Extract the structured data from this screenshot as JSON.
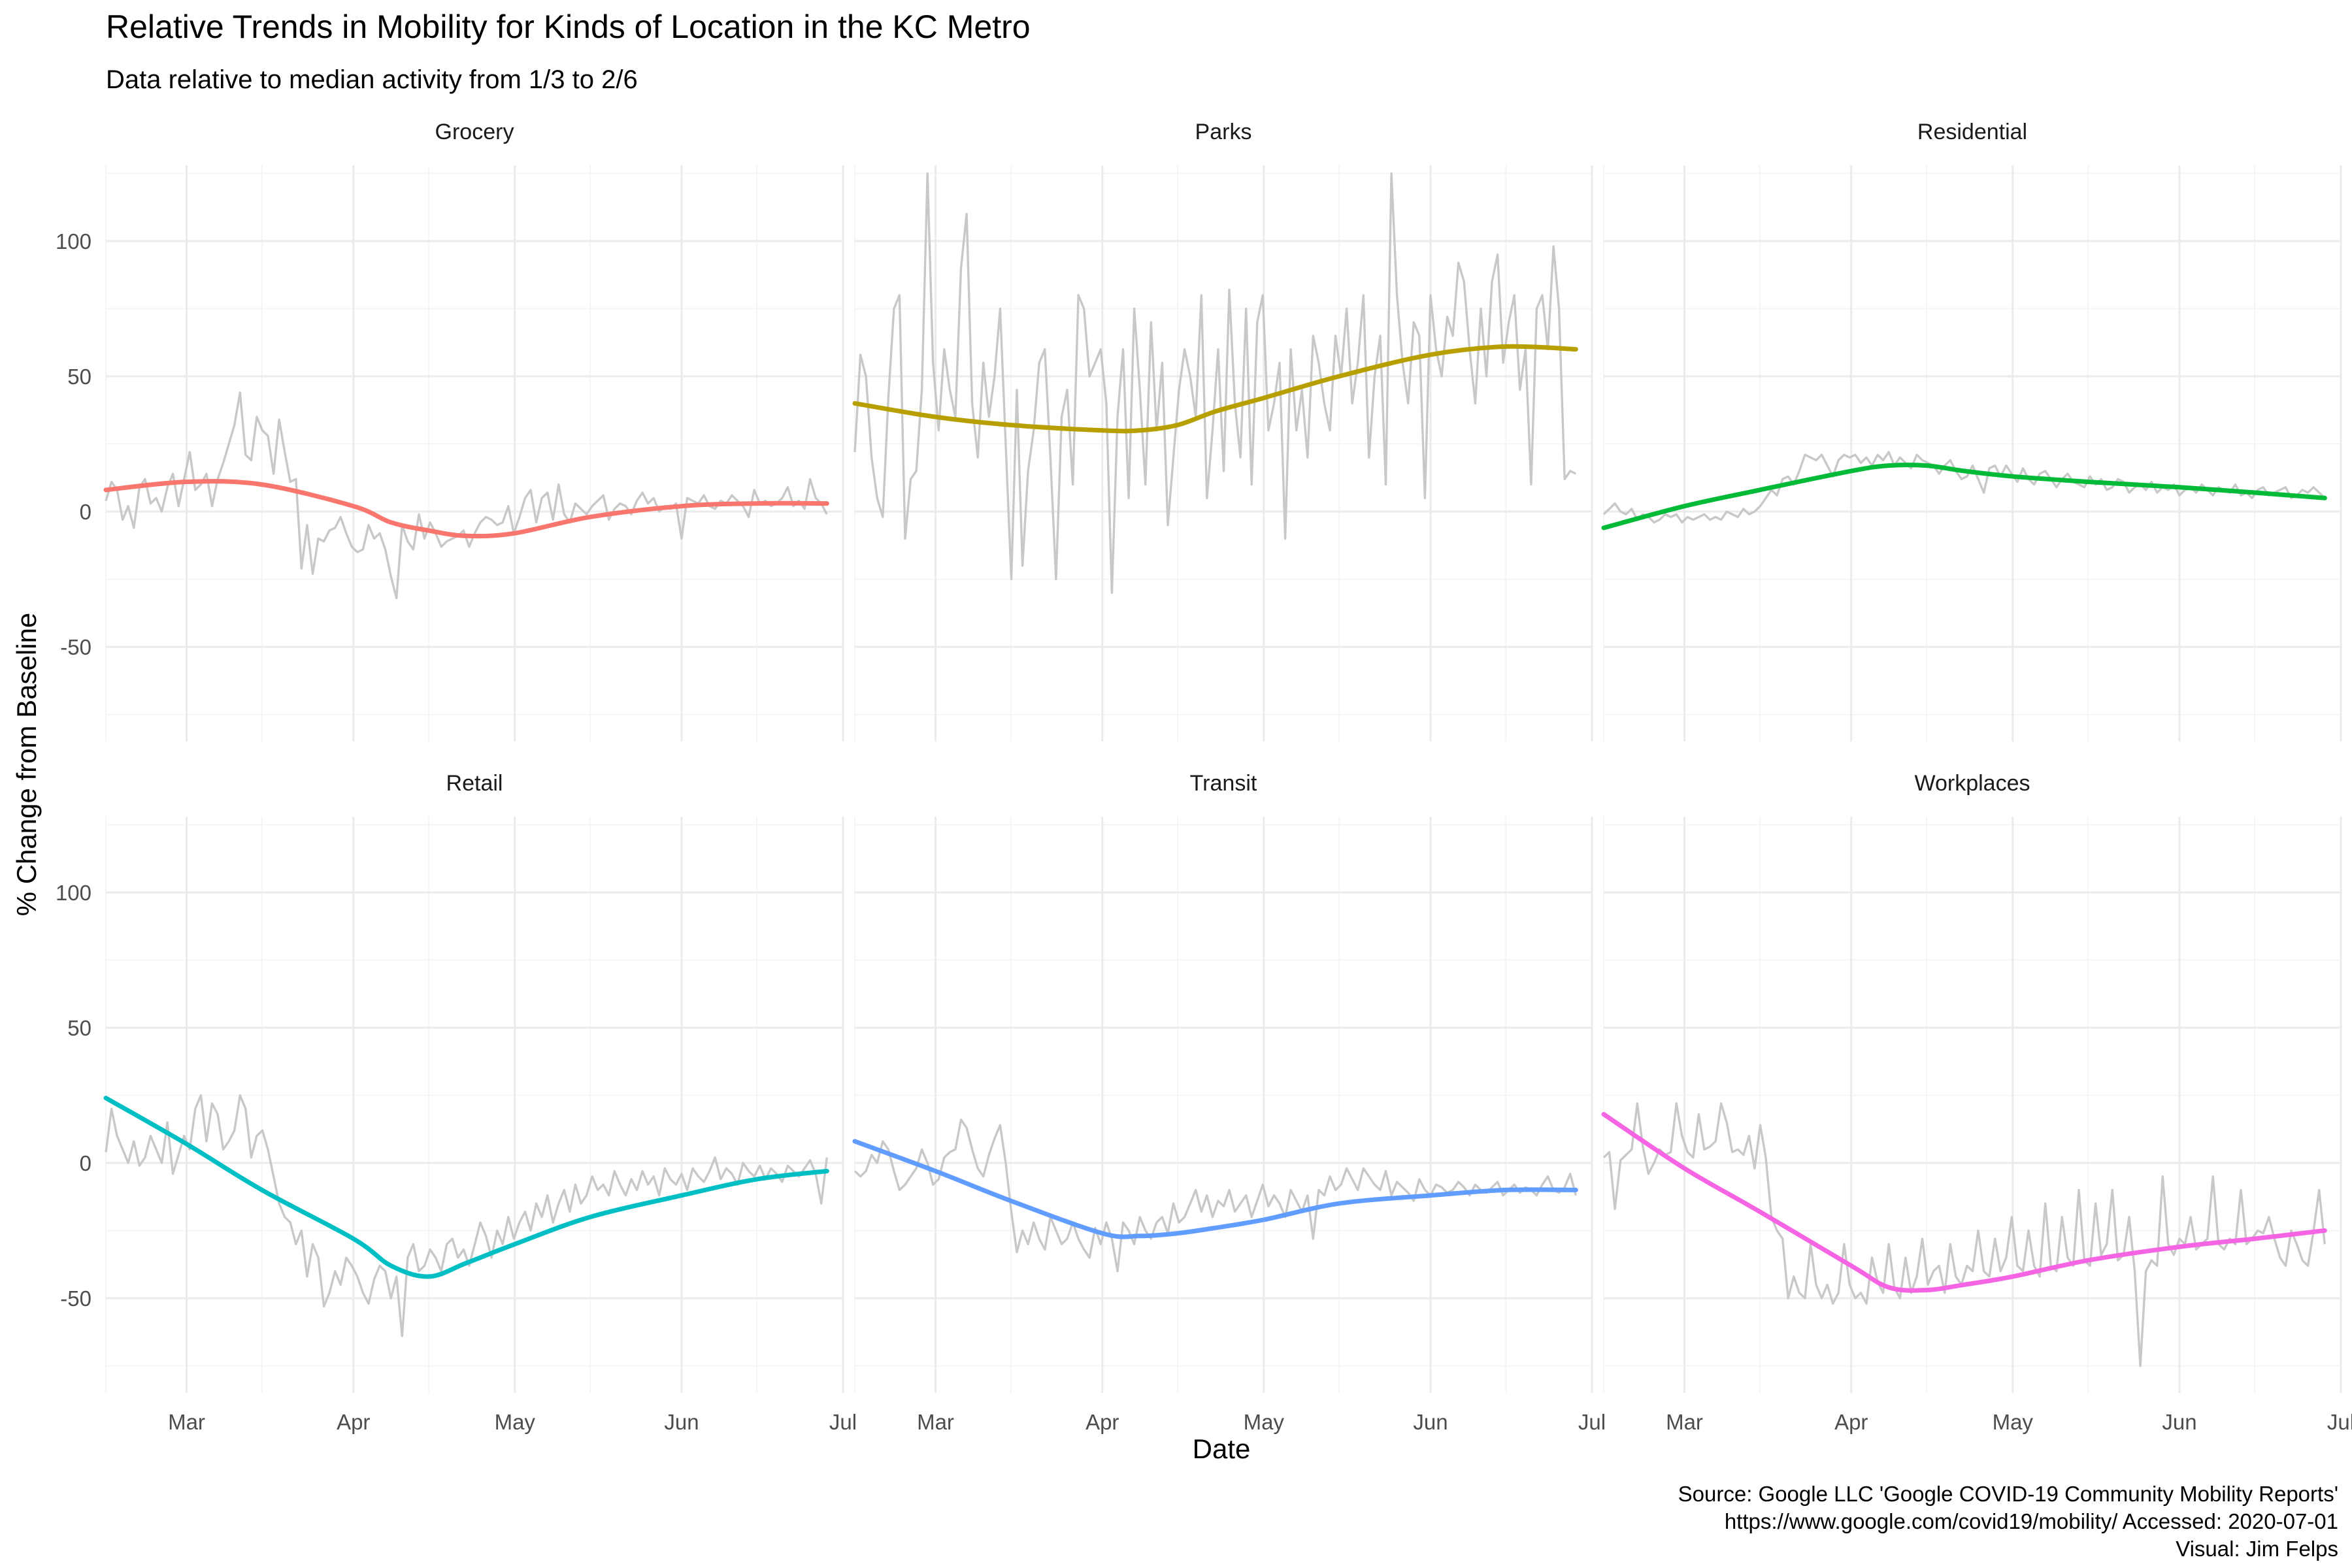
{
  "title": "Relative Trends in Mobility for Kinds of Location in the KC Metro",
  "subtitle": "Data relative to median activity from 1/3 to 2/6",
  "caption": [
    "Source: Google LLC 'Google COVID-19 Community Mobility Reports'",
    "https://www.google.com/covid19/mobility/ Accessed: 2020-07-01",
    "Visual: Jim Felps"
  ],
  "colors": {
    "raw": "#c8c8c8",
    "grid": "#ebebeb"
  },
  "chart_data": {
    "type": "line",
    "layout": "facet-grid 2 rows x 3 columns, shared axes",
    "xlabel": "Date",
    "ylabel": "% Change from Baseline",
    "xlim": [
      "2020-02-15",
      "2020-07-01"
    ],
    "ylim": [
      -85,
      128
    ],
    "x_ticks": [
      {
        "date": "2020-03-01",
        "label": "Mar"
      },
      {
        "date": "2020-04-01",
        "label": "Apr"
      },
      {
        "date": "2020-05-01",
        "label": "May"
      },
      {
        "date": "2020-06-01",
        "label": "Jun"
      },
      {
        "date": "2020-07-01",
        "label": "Jul"
      }
    ],
    "y_ticks": [
      -50,
      0,
      50,
      100
    ],
    "x_minor_dates": [
      "2020-02-15",
      "2020-03-15",
      "2020-04-15",
      "2020-05-15",
      "2020-06-15"
    ],
    "y_minor": [
      -75,
      -25,
      25,
      75,
      125
    ],
    "grid": true,
    "legend": "none",
    "raw_start_date": "2020-02-15",
    "raw_end_date": "2020-06-28",
    "trend_dates": [
      "2020-02-15",
      "2020-03-01",
      "2020-03-15",
      "2020-04-01",
      "2020-04-08",
      "2020-04-15",
      "2020-04-22",
      "2020-05-01",
      "2020-05-15",
      "2020-06-01",
      "2020-06-15",
      "2020-06-28"
    ],
    "series": [
      {
        "name": "Grocery",
        "color": "#F8766D",
        "trend": [
          8,
          11,
          10,
          2,
          -4,
          -7,
          -9,
          -8,
          -2,
          2,
          3,
          3
        ],
        "raw": [
          4,
          11,
          8,
          -3,
          2,
          -6,
          9,
          12,
          3,
          5,
          0,
          9,
          14,
          2,
          12,
          22,
          8,
          10,
          14,
          2,
          12,
          18,
          25,
          32,
          44,
          21,
          19,
          35,
          30,
          28,
          14,
          34,
          22,
          11,
          12,
          -21,
          -5,
          -23,
          -10,
          -11,
          -7,
          -6,
          -2,
          -8,
          -13,
          -15,
          -14,
          -5,
          -10,
          -8,
          -14,
          -24,
          -32,
          -5,
          -11,
          -14,
          -1,
          -10,
          -4,
          -8,
          -13,
          -11,
          -10,
          -9,
          -7,
          -13,
          -8,
          -4,
          -2,
          -3,
          -5,
          -4,
          2,
          -8,
          -2,
          5,
          8,
          -4,
          5,
          7,
          -3,
          10,
          -1,
          -4,
          3,
          1,
          -1,
          2,
          4,
          6,
          -3,
          1,
          3,
          2,
          -1,
          4,
          7,
          3,
          5,
          0,
          2,
          1,
          3,
          -10,
          5,
          4,
          3,
          6,
          2,
          1,
          4,
          3,
          6,
          4,
          2,
          -2,
          8,
          3,
          4,
          2,
          3,
          5,
          9,
          2,
          4,
          1,
          12,
          5,
          3,
          -1
        ]
      },
      {
        "name": "Parks",
        "color": "#B79F00",
        "trend": [
          40,
          35,
          32,
          30,
          30,
          32,
          37,
          42,
          50,
          58,
          61,
          60
        ],
        "raw": [
          22,
          58,
          50,
          20,
          5,
          -2,
          42,
          75,
          80,
          -10,
          12,
          15,
          45,
          125,
          55,
          30,
          60,
          45,
          35,
          90,
          110,
          40,
          20,
          55,
          35,
          50,
          75,
          25,
          -25,
          45,
          -20,
          15,
          30,
          55,
          60,
          20,
          -25,
          35,
          45,
          10,
          80,
          75,
          50,
          55,
          60,
          40,
          -30,
          35,
          60,
          5,
          75,
          45,
          10,
          70,
          30,
          55,
          -5,
          20,
          45,
          60,
          50,
          35,
          80,
          5,
          30,
          60,
          15,
          82,
          40,
          20,
          75,
          10,
          70,
          80,
          30,
          40,
          55,
          -10,
          60,
          30,
          45,
          20,
          65,
          55,
          40,
          30,
          65,
          50,
          75,
          40,
          55,
          80,
          20,
          50,
          65,
          10,
          125,
          80,
          55,
          40,
          70,
          65,
          5,
          80,
          60,
          50,
          72,
          65,
          92,
          85,
          60,
          40,
          75,
          50,
          85,
          95,
          55,
          70,
          80,
          45,
          60,
          10,
          75,
          80,
          60,
          98,
          75,
          12,
          15,
          14
        ]
      },
      {
        "name": "Residential",
        "color": "#00BA38",
        "trend": [
          -6,
          2,
          8,
          15,
          17,
          17,
          15,
          13,
          11,
          9,
          7,
          5
        ],
        "raw": [
          -1,
          1,
          3,
          0,
          -1,
          1,
          -3,
          -1,
          -2,
          -4,
          -3,
          -1,
          -2,
          -1,
          -4,
          -2,
          -3,
          -2,
          -1,
          -3,
          -2,
          -3,
          0,
          -1,
          -2,
          1,
          -1,
          0,
          2,
          5,
          8,
          6,
          12,
          13,
          10,
          15,
          21,
          20,
          19,
          21,
          17,
          13,
          19,
          21,
          20,
          21,
          18,
          20,
          17,
          21,
          19,
          22,
          17,
          20,
          18,
          16,
          21,
          19,
          18,
          17,
          14,
          17,
          19,
          15,
          12,
          13,
          17,
          12,
          7,
          16,
          17,
          13,
          17,
          14,
          11,
          16,
          12,
          10,
          14,
          15,
          12,
          9,
          12,
          14,
          11,
          10,
          9,
          13,
          10,
          12,
          8,
          9,
          12,
          11,
          7,
          9,
          10,
          8,
          11,
          7,
          9,
          8,
          10,
          6,
          8,
          9,
          7,
          10,
          8,
          6,
          9,
          8,
          7,
          10,
          6,
          7,
          5,
          8,
          9,
          6,
          7,
          8,
          9,
          5,
          6,
          8,
          7,
          9,
          7,
          5
        ]
      },
      {
        "name": "Retail",
        "color": "#00BFC4",
        "trend": [
          24,
          7,
          -10,
          -28,
          -38,
          -42,
          -37,
          -30,
          -20,
          -12,
          -6,
          -3
        ],
        "raw": [
          4,
          20,
          10,
          5,
          0,
          8,
          -1,
          2,
          10,
          5,
          0,
          15,
          -4,
          3,
          10,
          5,
          20,
          25,
          8,
          22,
          18,
          5,
          8,
          12,
          25,
          20,
          2,
          10,
          12,
          5,
          -5,
          -15,
          -20,
          -22,
          -30,
          -25,
          -42,
          -30,
          -35,
          -53,
          -48,
          -40,
          -45,
          -35,
          -38,
          -42,
          -48,
          -52,
          -43,
          -38,
          -40,
          -50,
          -42,
          -64,
          -35,
          -30,
          -40,
          -38,
          -32,
          -35,
          -40,
          -30,
          -28,
          -35,
          -32,
          -38,
          -30,
          -22,
          -27,
          -35,
          -25,
          -30,
          -20,
          -28,
          -22,
          -18,
          -25,
          -15,
          -20,
          -12,
          -22,
          -15,
          -10,
          -18,
          -8,
          -15,
          -12,
          -5,
          -10,
          -8,
          -12,
          -3,
          -8,
          -12,
          -6,
          -10,
          -3,
          -8,
          -5,
          -12,
          -2,
          -6,
          -8,
          -4,
          -10,
          -2,
          -5,
          -7,
          -3,
          2,
          -6,
          -2,
          -4,
          -8,
          0,
          -3,
          -5,
          -1,
          -6,
          -2,
          -4,
          -7,
          -1,
          -3,
          -5,
          -2,
          1,
          -4,
          -15,
          2
        ]
      },
      {
        "name": "Transit",
        "color": "#619CFF",
        "trend": [
          8,
          -3,
          -14,
          -26,
          -27,
          -26,
          -24,
          -21,
          -15,
          -12,
          -10,
          -10
        ],
        "raw": [
          -3,
          -5,
          -3,
          3,
          0,
          8,
          5,
          -3,
          -10,
          -8,
          -5,
          -2,
          5,
          0,
          -8,
          -6,
          2,
          4,
          5,
          16,
          13,
          5,
          -2,
          -5,
          3,
          9,
          14,
          0,
          -18,
          -33,
          -25,
          -30,
          -22,
          -28,
          -32,
          -20,
          -25,
          -30,
          -28,
          -22,
          -28,
          -32,
          -35,
          -24,
          -30,
          -22,
          -28,
          -40,
          -22,
          -25,
          -30,
          -20,
          -25,
          -28,
          -22,
          -20,
          -26,
          -15,
          -22,
          -20,
          -15,
          -10,
          -18,
          -12,
          -20,
          -14,
          -16,
          -10,
          -18,
          -15,
          -12,
          -20,
          -14,
          -8,
          -16,
          -12,
          -15,
          -20,
          -10,
          -14,
          -18,
          -12,
          -28,
          -10,
          -12,
          -5,
          -10,
          -8,
          -2,
          -6,
          -10,
          -2,
          -5,
          -8,
          -10,
          -3,
          -12,
          -7,
          -9,
          -11,
          -14,
          -6,
          -10,
          -12,
          -8,
          -9,
          -11,
          -10,
          -7,
          -9,
          -12,
          -8,
          -10,
          -11,
          -9,
          -7,
          -12,
          -10,
          -8,
          -11,
          -9,
          -10,
          -12,
          -8,
          -5,
          -10,
          -11,
          -9,
          -4,
          -12
        ]
      },
      {
        "name": "Workplaces",
        "color": "#F564E3",
        "trend": [
          18,
          -2,
          -18,
          -38,
          -46,
          -47,
          -45,
          -42,
          -36,
          -31,
          -28,
          -25
        ],
        "raw": [
          2,
          4,
          -17,
          1,
          3,
          5,
          22,
          6,
          -4,
          0,
          5,
          3,
          4,
          22,
          10,
          4,
          2,
          18,
          5,
          6,
          8,
          22,
          15,
          4,
          5,
          3,
          10,
          -2,
          14,
          2,
          -20,
          -25,
          -28,
          -50,
          -42,
          -48,
          -50,
          -30,
          -45,
          -50,
          -45,
          -52,
          -48,
          -30,
          -45,
          -50,
          -48,
          -52,
          -35,
          -44,
          -48,
          -30,
          -46,
          -50,
          -35,
          -48,
          -42,
          -28,
          -45,
          -40,
          -38,
          -48,
          -30,
          -42,
          -45,
          -38,
          -40,
          -25,
          -40,
          -42,
          -28,
          -40,
          -35,
          -20,
          -38,
          -40,
          -25,
          -38,
          -42,
          -15,
          -38,
          -40,
          -20,
          -35,
          -38,
          -10,
          -36,
          -38,
          -15,
          -34,
          -30,
          -10,
          -36,
          -34,
          -20,
          -40,
          -75,
          -40,
          -36,
          -38,
          -5,
          -30,
          -34,
          -28,
          -30,
          -20,
          -32,
          -30,
          -28,
          -5,
          -30,
          -32,
          -28,
          -30,
          -10,
          -30,
          -28,
          -25,
          -26,
          -20,
          -28,
          -35,
          -38,
          -25,
          -30,
          -36,
          -38,
          -25,
          -10,
          -30
        ]
      }
    ]
  }
}
